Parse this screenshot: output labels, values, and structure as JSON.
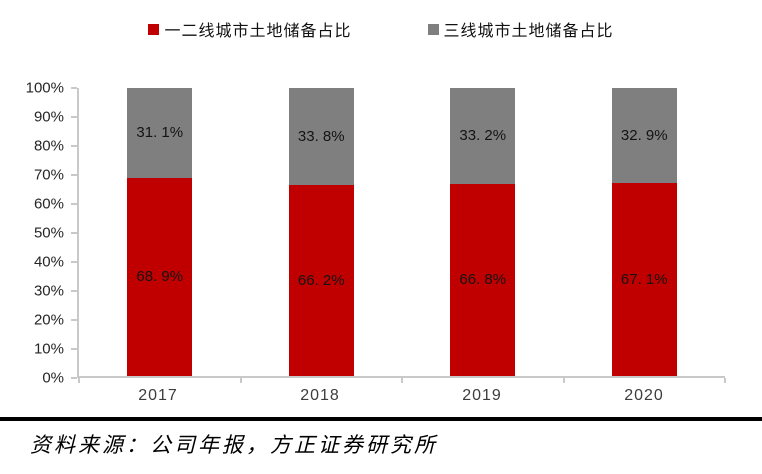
{
  "legend": [
    {
      "label": "一二线城市土地储备占比",
      "color": "#c00000"
    },
    {
      "label": "三线城市土地储备占比",
      "color": "#7f7f7f"
    }
  ],
  "chart_data": {
    "type": "bar",
    "stacked": true,
    "title": "",
    "xlabel": "",
    "ylabel": "",
    "ylim": [
      0,
      100
    ],
    "grid": false,
    "legend_position": "top",
    "categories": [
      "2017",
      "2018",
      "2019",
      "2020"
    ],
    "yticks": [
      "100%",
      "90%",
      "80%",
      "70%",
      "60%",
      "50%",
      "40%",
      "30%",
      "20%",
      "10%",
      "0%"
    ],
    "series": [
      {
        "name": "一二线城市土地储备占比",
        "color": "#c00000",
        "position": "bottom",
        "values": [
          68.9,
          66.2,
          66.8,
          67.1
        ],
        "labels": [
          "68. 9%",
          "66. 2%",
          "66. 8%",
          "67. 1%"
        ]
      },
      {
        "name": "三线城市土地储备占比",
        "color": "#7f7f7f",
        "position": "top",
        "values": [
          31.1,
          33.8,
          33.2,
          32.9
        ],
        "labels": [
          "31. 1%",
          "33. 8%",
          "33. 2%",
          "32. 9%"
        ]
      }
    ]
  },
  "footer": {
    "source_text": "资料来源：公司年报，方正证券研究所"
  },
  "colors": {
    "axis": "#c9c9c9",
    "label_text": "#141414",
    "divider": "#000000"
  }
}
